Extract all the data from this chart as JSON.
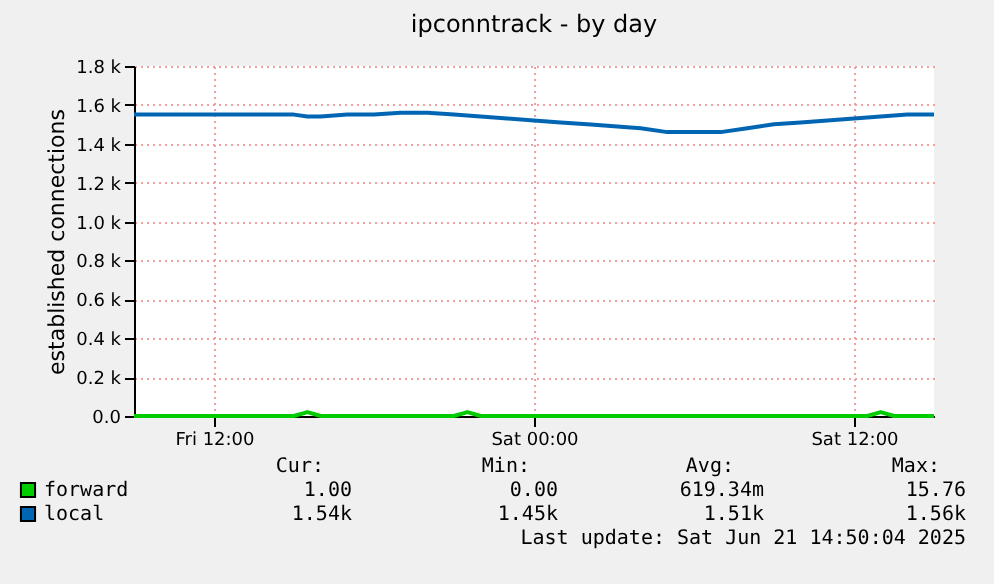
{
  "chart_data": {
    "type": "line",
    "title": "ipconntrack - by day",
    "ylabel": "established connections",
    "xlim": [
      "2025-06-20T09:00",
      "2025-06-21T15:00"
    ],
    "xticks": [
      {
        "value": "2025-06-20T12:00",
        "label": "Fri 12:00"
      },
      {
        "value": "2025-06-21T00:00",
        "label": "Sat 00:00"
      },
      {
        "value": "2025-06-21T12:00",
        "label": "Sat 12:00"
      }
    ],
    "ylim": [
      0,
      1800
    ],
    "yticks": [
      {
        "value": 0,
        "label": "0.0"
      },
      {
        "value": 200,
        "label": "0.2 k"
      },
      {
        "value": 400,
        "label": "0.4 k"
      },
      {
        "value": 600,
        "label": "0.6 k"
      },
      {
        "value": 800,
        "label": "0.8 k"
      },
      {
        "value": 1000,
        "label": "1.0 k"
      },
      {
        "value": 1200,
        "label": "1.2 k"
      },
      {
        "value": 1400,
        "label": "1.4 k"
      },
      {
        "value": 1600,
        "label": "1.6 k"
      },
      {
        "value": 1800,
        "label": "1.8 k"
      }
    ],
    "grid": true,
    "legend": "bottom",
    "marker": "none",
    "line_style": "solid",
    "series": [
      {
        "name": "forward",
        "color": "#00cc00",
        "x": [
          "2025-06-20T09:00",
          "2025-06-20T12:00",
          "2025-06-20T15:00",
          "2025-06-20T15:30",
          "2025-06-20T16:00",
          "2025-06-20T21:00",
          "2025-06-20T21:30",
          "2025-06-20T22:00",
          "2025-06-21T03:00",
          "2025-06-21T09:00",
          "2025-06-21T12:30",
          "2025-06-21T13:00",
          "2025-06-21T13:30",
          "2025-06-21T15:00"
        ],
        "values": [
          0,
          0,
          0,
          20,
          0,
          0,
          20,
          0,
          0,
          0,
          0,
          20,
          0,
          0
        ]
      },
      {
        "name": "local",
        "color": "#0066b3",
        "x": [
          "2025-06-20T09:00",
          "2025-06-20T12:00",
          "2025-06-20T15:00",
          "2025-06-20T15:30",
          "2025-06-20T16:00",
          "2025-06-20T17:00",
          "2025-06-20T18:00",
          "2025-06-20T19:00",
          "2025-06-20T20:00",
          "2025-06-20T21:00",
          "2025-06-20T22:00",
          "2025-06-20T23:00",
          "2025-06-21T00:00",
          "2025-06-21T01:00",
          "2025-06-21T02:00",
          "2025-06-21T03:00",
          "2025-06-21T04:00",
          "2025-06-21T05:00",
          "2025-06-21T06:00",
          "2025-06-21T07:00",
          "2025-06-21T08:00",
          "2025-06-21T09:00",
          "2025-06-21T10:00",
          "2025-06-21T11:00",
          "2025-06-21T12:00",
          "2025-06-21T13:00",
          "2025-06-21T14:00",
          "2025-06-21T15:00"
        ],
        "values": [
          1550,
          1550,
          1550,
          1540,
          1540,
          1550,
          1550,
          1560,
          1560,
          1550,
          1540,
          1530,
          1520,
          1510,
          1500,
          1490,
          1480,
          1460,
          1460,
          1460,
          1480,
          1500,
          1510,
          1520,
          1530,
          1540,
          1550,
          1550
        ]
      }
    ],
    "annotations": [
      "Cur:",
      "Min:",
      "Avg:",
      "Max:",
      "1.00",
      "0.00",
      "619.34m",
      "15.76",
      "1.54k",
      "1.45k",
      "1.51k",
      "1.56k",
      "Last update: Sat Jun 21 14:50:04 2025"
    ]
  }
}
